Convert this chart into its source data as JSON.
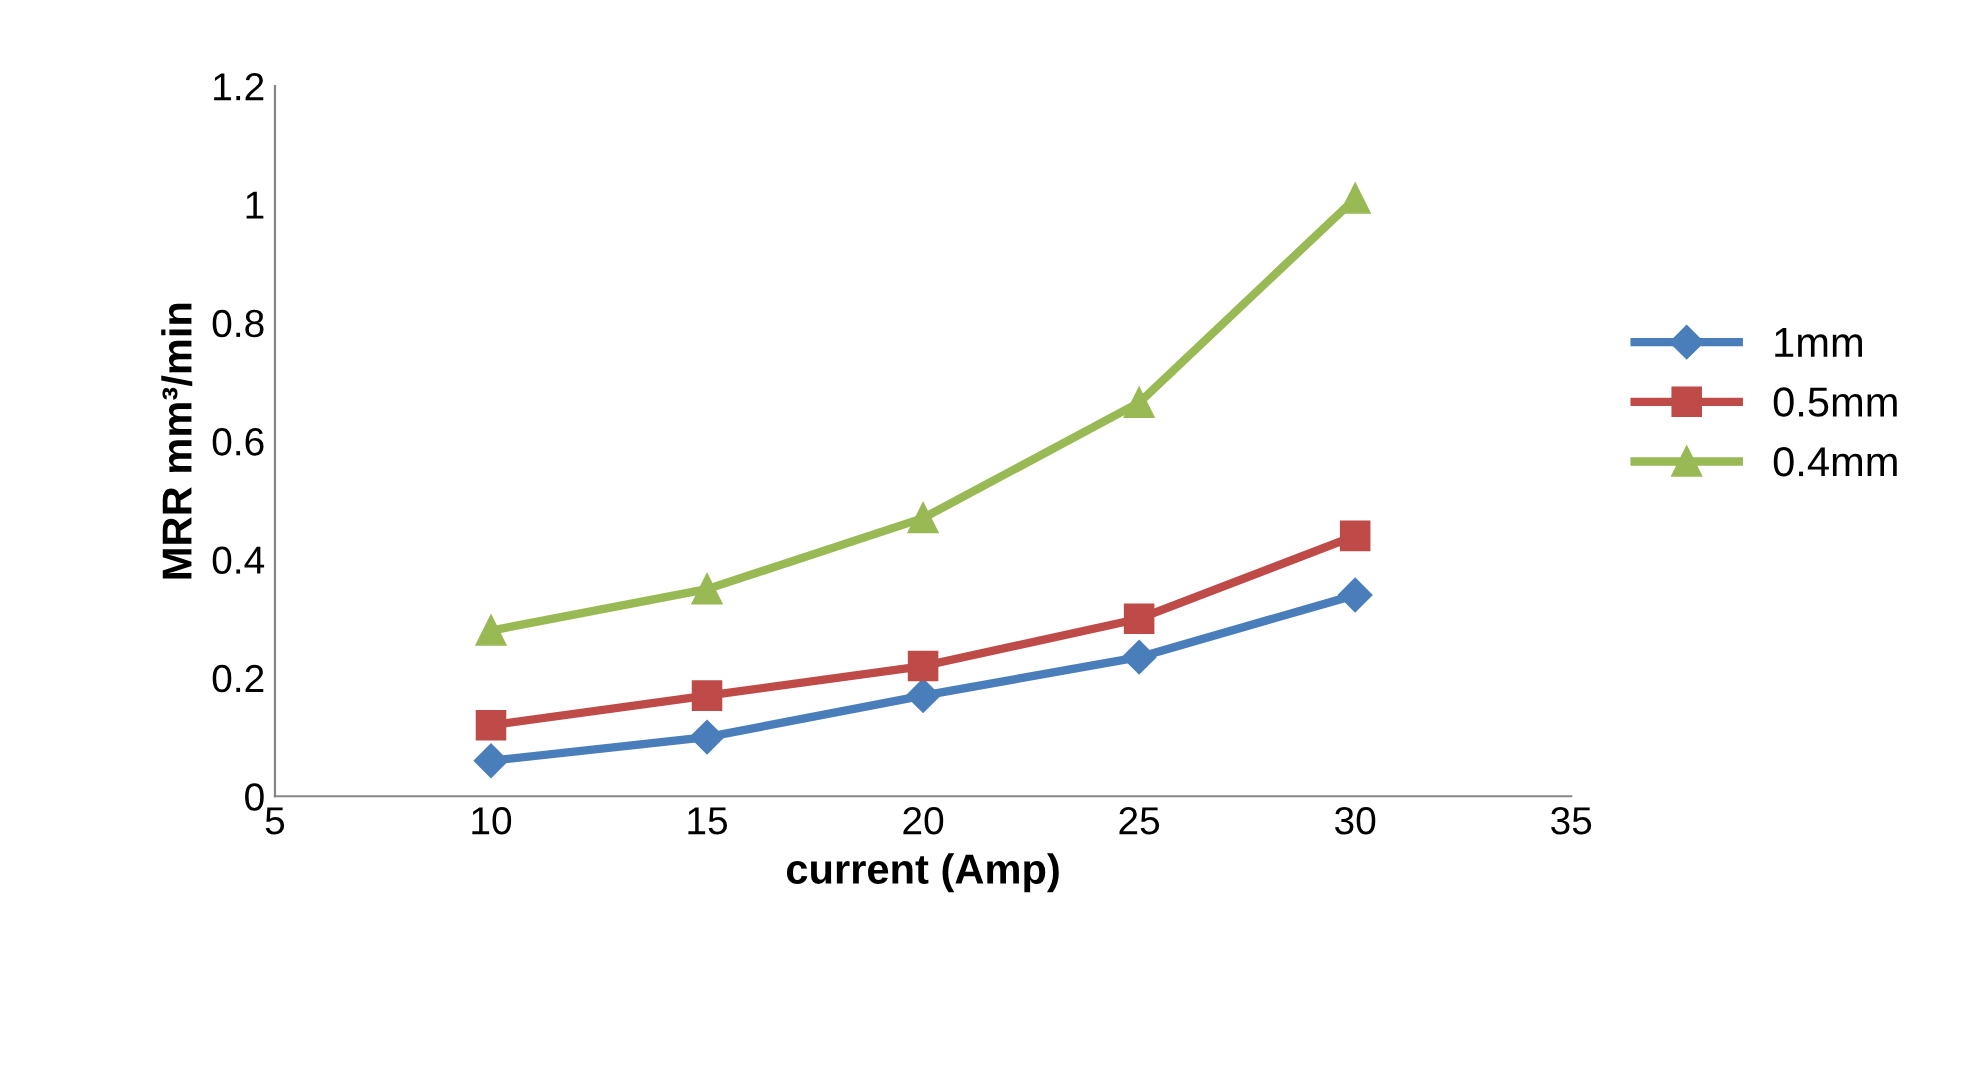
{
  "chart_data": {
    "type": "line",
    "xlabel": "current (Amp)",
    "ylabel": "MRR mm³/min",
    "x": [
      10,
      15,
      20,
      25,
      30
    ],
    "series": [
      {
        "name": "1mm",
        "color": "#4a7ebb",
        "marker": "diamond",
        "values": [
          0.06,
          0.1,
          0.17,
          0.235,
          0.34
        ]
      },
      {
        "name": "0.5mm",
        "color": "#be4b48",
        "marker": "square",
        "values": [
          0.12,
          0.17,
          0.22,
          0.3,
          0.44
        ]
      },
      {
        "name": "0.4mm",
        "color": "#98b954",
        "marker": "triangle",
        "values": [
          0.28,
          0.35,
          0.47,
          0.665,
          1.01
        ]
      }
    ],
    "xlim": [
      5,
      35
    ],
    "xticks": [
      5,
      10,
      15,
      20,
      25,
      30,
      35
    ],
    "ylim": [
      0,
      1.2
    ],
    "yticks": [
      0,
      0.2,
      0.4,
      0.6,
      0.8,
      1,
      1.2
    ],
    "grid": false,
    "legend": "right",
    "line_style": "solid"
  }
}
